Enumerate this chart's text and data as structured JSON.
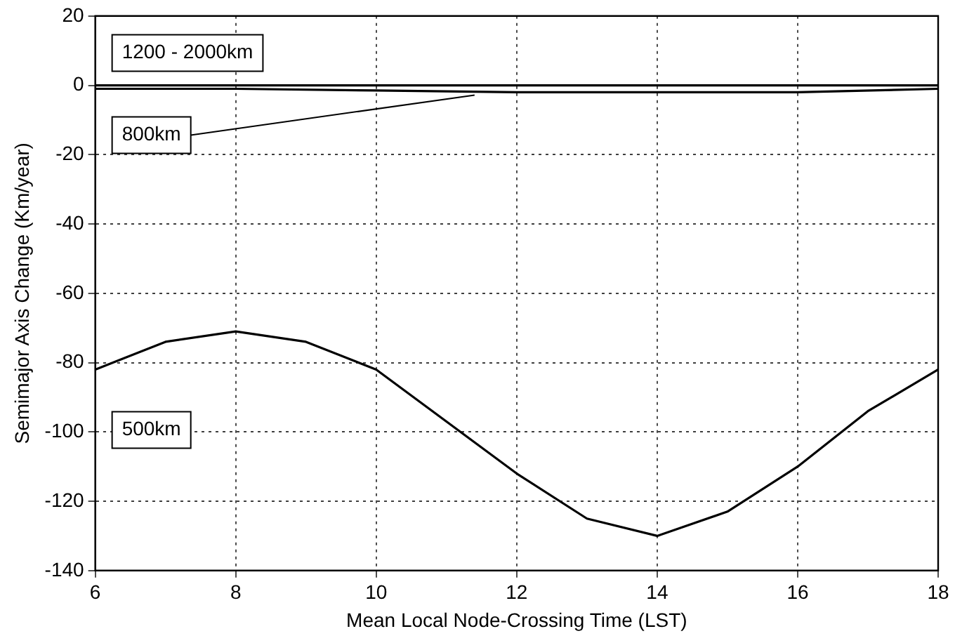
{
  "chart_data": {
    "type": "line",
    "xlabel": "Mean Local Node-Crossing Time (LST)",
    "ylabel": "Semimajor Axis Change (Km/year)",
    "xlim": [
      6,
      18
    ],
    "xticks": [
      6,
      8,
      10,
      12,
      14,
      16,
      18
    ],
    "ylim": [
      -140,
      20
    ],
    "yticks": [
      -140,
      -120,
      -100,
      -80,
      -60,
      -40,
      -20,
      0,
      20
    ],
    "grid": true,
    "legend": "left",
    "marker": "none",
    "line_style": "solid",
    "series": [
      {
        "name": "1200 - 2000km",
        "color": "#000000",
        "x": [
          6,
          8,
          10,
          12,
          14,
          16,
          18
        ],
        "values": [
          0,
          0,
          0,
          0,
          0,
          0,
          0
        ]
      },
      {
        "name": "800km",
        "color": "#000000",
        "x": [
          6,
          8,
          10,
          12,
          14,
          16,
          18
        ],
        "values": [
          -1,
          -1,
          -1.5,
          -2,
          -2,
          -2,
          -1
        ]
      },
      {
        "name": "500km",
        "color": "#000000",
        "x": [
          6,
          7,
          8,
          9,
          10,
          11,
          12,
          13,
          14,
          15,
          16,
          17,
          18
        ],
        "values": [
          -82,
          -74,
          -71,
          -74,
          -82,
          -97,
          -112,
          -125,
          -130,
          -123,
          -110,
          -94,
          -82
        ]
      }
    ]
  }
}
